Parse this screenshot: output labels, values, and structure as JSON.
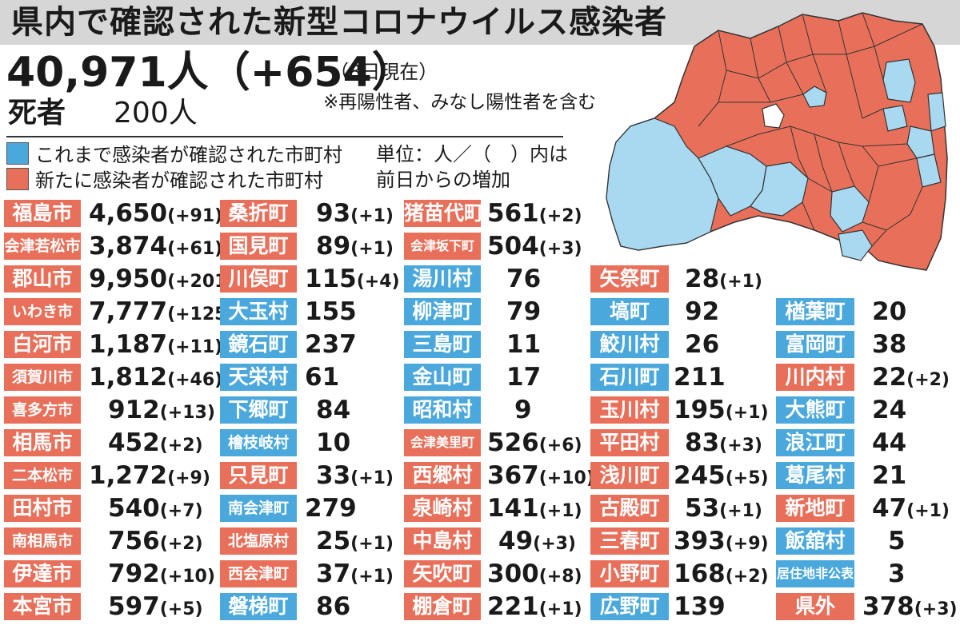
{
  "title": "県内で確認された新型コロナウイルス感染者",
  "total": "40,971人（+654）",
  "as_of": "（8日現在）",
  "note": "※再陽性者、みなし陽性者を含む",
  "deaths": {
    "label": "死者",
    "value": "200人"
  },
  "legend": {
    "blue": "これまで感染者が確認された市町村",
    "red": "新たに感染者が確認された市町村",
    "unit_line1": "単位：人／（　）内は",
    "unit_line2": "前日からの増加"
  },
  "colors": {
    "red": "#e8705a",
    "blue": "#4aa8dc",
    "white": "#ffffff"
  },
  "columns": [
    [
      {
        "name": "福島市",
        "count": "4,650",
        "inc": "(+91)",
        "color": "red"
      },
      {
        "name": "会津若松市",
        "count": "3,874",
        "inc": "(+61)",
        "color": "red"
      },
      {
        "name": "郡山市",
        "count": "9,950",
        "inc": "(+201)",
        "color": "red"
      },
      {
        "name": "いわき市",
        "count": "7,777",
        "inc": "(+125)",
        "color": "red"
      },
      {
        "name": "白河市",
        "count": "1,187",
        "inc": "(+11)",
        "color": "red"
      },
      {
        "name": "須賀川市",
        "count": "1,812",
        "inc": "(+46)",
        "color": "red"
      },
      {
        "name": "喜多方市",
        "count": "912",
        "inc": "(+13)",
        "color": "red"
      },
      {
        "name": "相馬市",
        "count": "452",
        "inc": "(+2)",
        "color": "red"
      },
      {
        "name": "二本松市",
        "count": "1,272",
        "inc": "(+9)",
        "color": "red"
      },
      {
        "name": "田村市",
        "count": "540",
        "inc": "(+7)",
        "color": "red"
      },
      {
        "name": "南相馬市",
        "count": "756",
        "inc": "(+2)",
        "color": "red"
      },
      {
        "name": "伊達市",
        "count": "792",
        "inc": "(+10)",
        "color": "red"
      },
      {
        "name": "本宮市",
        "count": "597",
        "inc": "(+5)",
        "color": "red"
      }
    ],
    [
      {
        "name": "桑折町",
        "count": "93",
        "inc": "(+1)",
        "color": "red"
      },
      {
        "name": "国見町",
        "count": "89",
        "inc": "(+1)",
        "color": "red"
      },
      {
        "name": "川俣町",
        "count": "115",
        "inc": "(+4)",
        "color": "red"
      },
      {
        "name": "大玉村",
        "count": "155",
        "inc": "",
        "color": "blue"
      },
      {
        "name": "鏡石町",
        "count": "237",
        "inc": "",
        "color": "blue"
      },
      {
        "name": "天栄村",
        "count": "61",
        "inc": "",
        "color": "blue"
      },
      {
        "name": "下郷町",
        "count": "84",
        "inc": "",
        "color": "blue"
      },
      {
        "name": "檜枝岐村",
        "count": "10",
        "inc": "",
        "color": "blue"
      },
      {
        "name": "只見町",
        "count": "33",
        "inc": "(+1)",
        "color": "red"
      },
      {
        "name": "南会津町",
        "count": "279",
        "inc": "",
        "color": "blue"
      },
      {
        "name": "北塩原村",
        "count": "25",
        "inc": "(+1)",
        "color": "red"
      },
      {
        "name": "西会津町",
        "count": "37",
        "inc": "(+1)",
        "color": "red"
      },
      {
        "name": "磐梯町",
        "count": "86",
        "inc": "",
        "color": "blue"
      }
    ],
    [
      {
        "name": "猪苗代町",
        "count": "561",
        "inc": "(+2)",
        "color": "red"
      },
      {
        "name": "会津坂下町",
        "count": "504",
        "inc": "(+3)",
        "color": "red"
      },
      {
        "name": "湯川村",
        "count": "76",
        "inc": "",
        "color": "blue"
      },
      {
        "name": "柳津町",
        "count": "79",
        "inc": "",
        "color": "blue"
      },
      {
        "name": "三島町",
        "count": "11",
        "inc": "",
        "color": "blue"
      },
      {
        "name": "金山町",
        "count": "17",
        "inc": "",
        "color": "blue"
      },
      {
        "name": "昭和村",
        "count": "9",
        "inc": "",
        "color": "blue"
      },
      {
        "name": "会津美里町",
        "count": "526",
        "inc": "(+6)",
        "color": "red"
      },
      {
        "name": "西郷村",
        "count": "367",
        "inc": "(+10)",
        "color": "red"
      },
      {
        "name": "泉崎村",
        "count": "141",
        "inc": "(+1)",
        "color": "red"
      },
      {
        "name": "中島村",
        "count": "49",
        "inc": "(+3)",
        "color": "red"
      },
      {
        "name": "矢吹町",
        "count": "300",
        "inc": "(+8)",
        "color": "red"
      },
      {
        "name": "棚倉町",
        "count": "221",
        "inc": "(+1)",
        "color": "red"
      }
    ],
    [
      {
        "name": "矢祭町",
        "count": "28",
        "inc": "(+1)",
        "color": "red"
      },
      {
        "name": "塙町",
        "count": "92",
        "inc": "",
        "color": "blue"
      },
      {
        "name": "鮫川村",
        "count": "26",
        "inc": "",
        "color": "blue"
      },
      {
        "name": "石川町",
        "count": "211",
        "inc": "",
        "color": "blue"
      },
      {
        "name": "玉川村",
        "count": "195",
        "inc": "(+1)",
        "color": "red"
      },
      {
        "name": "平田村",
        "count": "83",
        "inc": "(+3)",
        "color": "red"
      },
      {
        "name": "浅川町",
        "count": "245",
        "inc": "(+5)",
        "color": "red"
      },
      {
        "name": "古殿町",
        "count": "53",
        "inc": "(+1)",
        "color": "red"
      },
      {
        "name": "三春町",
        "count": "393",
        "inc": "(+9)",
        "color": "red"
      },
      {
        "name": "小野町",
        "count": "168",
        "inc": "(+2)",
        "color": "red"
      },
      {
        "name": "広野町",
        "count": "139",
        "inc": "",
        "color": "blue"
      }
    ],
    [
      {
        "name": "楢葉町",
        "count": "20",
        "inc": "",
        "color": "blue"
      },
      {
        "name": "富岡町",
        "count": "38",
        "inc": "",
        "color": "blue"
      },
      {
        "name": "川内村",
        "count": "22",
        "inc": "(+2)",
        "color": "red"
      },
      {
        "name": "大熊町",
        "count": "24",
        "inc": "",
        "color": "blue"
      },
      {
        "name": "浪江町",
        "count": "44",
        "inc": "",
        "color": "blue"
      },
      {
        "name": "葛尾村",
        "count": "21",
        "inc": "",
        "color": "blue"
      },
      {
        "name": "新地町",
        "count": "47",
        "inc": "(+1)",
        "color": "red"
      },
      {
        "name": "飯舘村",
        "count": "5",
        "inc": "",
        "color": "blue"
      },
      {
        "name": "居住地非公表",
        "count": "3",
        "inc": "",
        "color": "blue"
      },
      {
        "name": "県外",
        "count": "378",
        "inc": "(+3)",
        "color": "red"
      }
    ]
  ]
}
